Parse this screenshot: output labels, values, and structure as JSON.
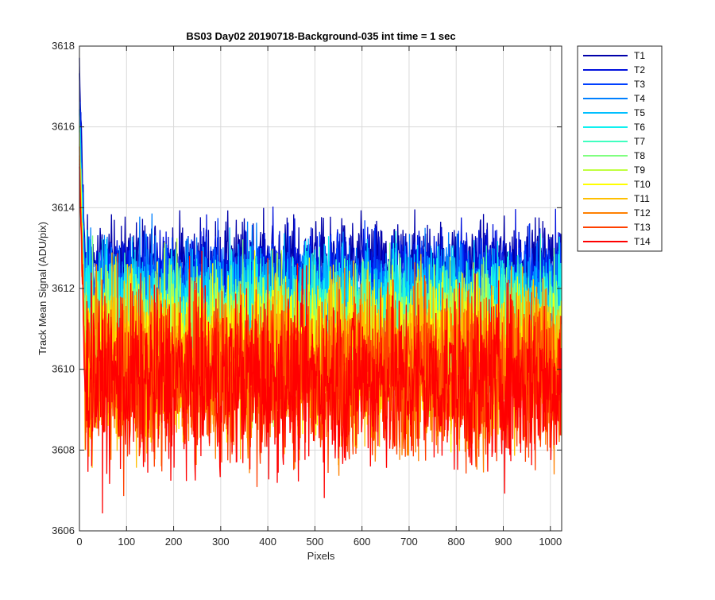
{
  "chart_data": {
    "type": "line",
    "title": "BS03 Day02 20190718-Background-035 int time = 1 sec",
    "xlabel": "Pixels",
    "ylabel": "Track Mean Signal (ADU/pix)",
    "xlim": [
      0,
      1024
    ],
    "ylim": [
      3606,
      3618
    ],
    "xticks": [
      0,
      100,
      200,
      300,
      400,
      500,
      600,
      700,
      800,
      900,
      1000
    ],
    "yticks": [
      3606,
      3608,
      3610,
      3612,
      3614,
      3616,
      3618
    ],
    "grid": true,
    "legend_position": "outside-top-right",
    "series": [
      {
        "name": "T1",
        "color": "#0000AA",
        "mean": 3612.6,
        "spread": 0.55,
        "start": 3617.5
      },
      {
        "name": "T2",
        "color": "#0010DD",
        "mean": 3612.3,
        "spread": 0.6,
        "start": 3617.0
      },
      {
        "name": "T3",
        "color": "#0040FF",
        "mean": 3612.0,
        "spread": 0.65,
        "start": 3616.7
      },
      {
        "name": "T4",
        "color": "#0080FF",
        "mean": 3611.8,
        "spread": 0.7,
        "start": 3616.4
      },
      {
        "name": "T5",
        "color": "#00BFFF",
        "mean": 3611.5,
        "spread": 0.75,
        "start": 3616.1
      },
      {
        "name": "T6",
        "color": "#10F0F0",
        "mean": 3611.3,
        "spread": 0.8,
        "start": 3615.9
      },
      {
        "name": "T7",
        "color": "#40FFC0",
        "mean": 3611.0,
        "spread": 0.85,
        "start": 3615.7
      },
      {
        "name": "T8",
        "color": "#80FF80",
        "mean": 3610.8,
        "spread": 0.9,
        "start": 3615.6
      },
      {
        "name": "T9",
        "color": "#C0FF40",
        "mean": 3610.6,
        "spread": 0.9,
        "start": 3615.5
      },
      {
        "name": "T10",
        "color": "#FFFF00",
        "mean": 3610.4,
        "spread": 0.95,
        "start": 3615.4
      },
      {
        "name": "T11",
        "color": "#FFBF00",
        "mean": 3610.2,
        "spread": 1.0,
        "start": 3615.3
      },
      {
        "name": "T12",
        "color": "#FF8000",
        "mean": 3610.0,
        "spread": 1.05,
        "start": 3615.2
      },
      {
        "name": "T13",
        "color": "#FF4000",
        "mean": 3609.8,
        "spread": 1.1,
        "start": 3615.2
      },
      {
        "name": "T14",
        "color": "#FF0000",
        "mean": 3609.7,
        "spread": 1.1,
        "start": 3615.0
      }
    ]
  }
}
